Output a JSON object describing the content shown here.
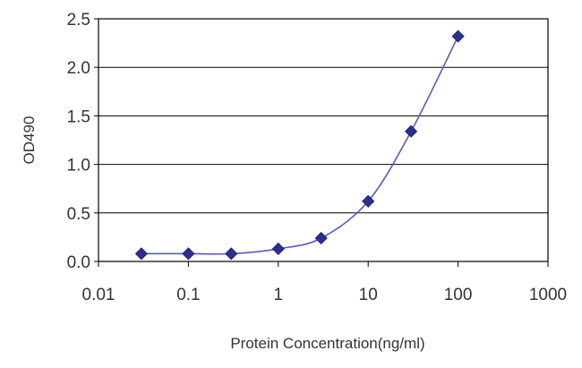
{
  "chart_data": {
    "type": "line",
    "title": "",
    "xlabel": "Protein Concentration(ng/ml)",
    "ylabel": "OD490",
    "x_scale": "log",
    "xlim": [
      0.01,
      1000
    ],
    "ylim": [
      0.0,
      2.5
    ],
    "x_tick_labels": [
      "0.01",
      "0.1",
      "1",
      "10",
      "100",
      "1000"
    ],
    "x_tick_values": [
      0.01,
      0.1,
      1,
      10,
      100,
      1000
    ],
    "y_tick_labels": [
      "0.0",
      "0.5",
      "1.0",
      "1.5",
      "2.0",
      "2.5"
    ],
    "y_tick_values": [
      0.0,
      0.5,
      1.0,
      1.5,
      2.0,
      2.5
    ],
    "grid": "horizontal",
    "legend": "none",
    "series": [
      {
        "x": [
          0.03,
          0.1,
          0.3,
          1,
          3,
          10,
          30,
          100
        ],
        "y": [
          0.08,
          0.08,
          0.08,
          0.13,
          0.24,
          0.62,
          1.34,
          2.32
        ],
        "color": "#2e2e8c",
        "marker": "diamond"
      }
    ]
  }
}
